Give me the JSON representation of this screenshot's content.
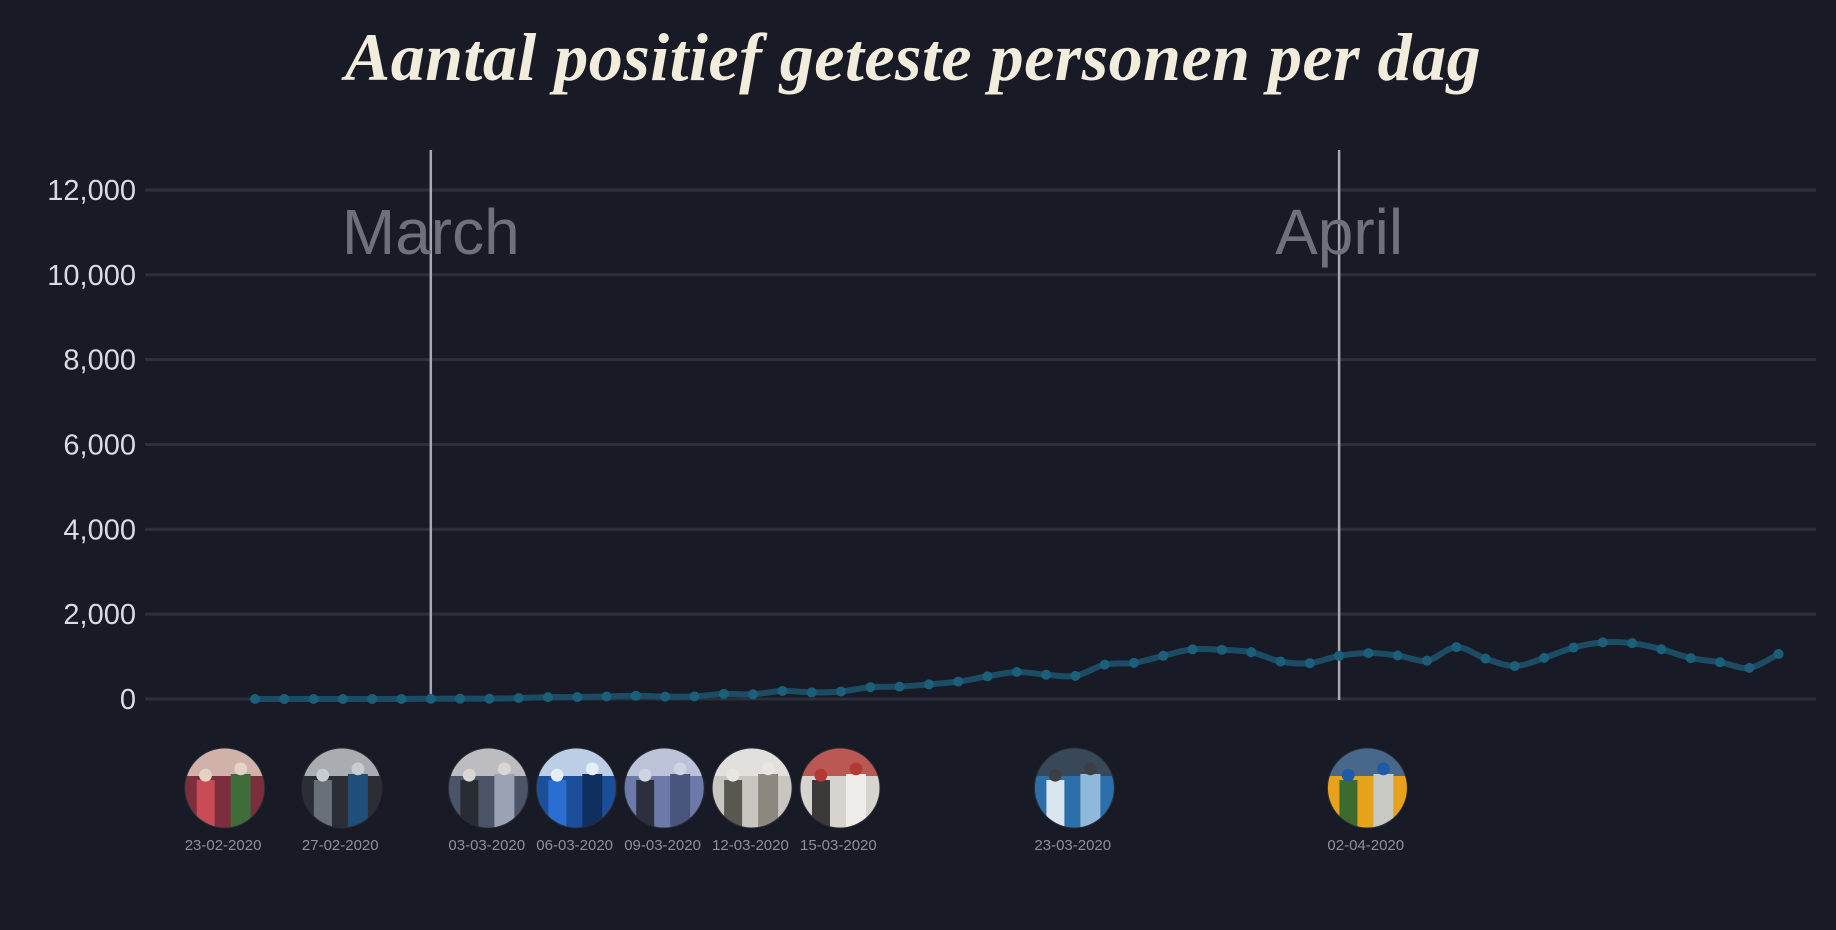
{
  "title": "Aantal positief geteste personen per dag",
  "chart_data": {
    "type": "line",
    "title": "Aantal positief geteste personen per dag",
    "xlabel": "",
    "ylabel": "",
    "y_ticks": [
      "0",
      "2,000",
      "4,000",
      "6,000",
      "8,000",
      "10,000",
      "12,000"
    ],
    "ylim": [
      0,
      12000
    ],
    "xlim": [
      "2020-02-20",
      "2020-04-16"
    ],
    "grid": true,
    "months": [
      {
        "label": "March",
        "date": "2020-03-01"
      },
      {
        "label": "April",
        "date": "2020-04-01"
      }
    ],
    "series": [
      {
        "color": "#1c5f7a",
        "points": [
          [
            "2020-02-24",
            0
          ],
          [
            "2020-02-25",
            0
          ],
          [
            "2020-02-26",
            0
          ],
          [
            "2020-02-27",
            0
          ],
          [
            "2020-02-28",
            1
          ],
          [
            "2020-02-29",
            1
          ],
          [
            "2020-03-01",
            5
          ],
          [
            "2020-03-02",
            8
          ],
          [
            "2020-03-03",
            8
          ],
          [
            "2020-03-04",
            20
          ],
          [
            "2020-03-05",
            44
          ],
          [
            "2020-03-06",
            46
          ],
          [
            "2020-03-07",
            60
          ],
          [
            "2020-03-08",
            77
          ],
          [
            "2020-03-09",
            56
          ],
          [
            "2020-03-10",
            61
          ],
          [
            "2020-03-11",
            121
          ],
          [
            "2020-03-12",
            111
          ],
          [
            "2020-03-13",
            190
          ],
          [
            "2020-03-14",
            155
          ],
          [
            "2020-03-15",
            176
          ],
          [
            "2020-03-16",
            278
          ],
          [
            "2020-03-17",
            292
          ],
          [
            "2020-03-18",
            346
          ],
          [
            "2020-03-19",
            409
          ],
          [
            "2020-03-20",
            534
          ],
          [
            "2020-03-21",
            637
          ],
          [
            "2020-03-22",
            573
          ],
          [
            "2020-03-23",
            545
          ],
          [
            "2020-03-24",
            811
          ],
          [
            "2020-03-25",
            852
          ],
          [
            "2020-03-26",
            1019
          ],
          [
            "2020-03-27",
            1172
          ],
          [
            "2020-03-28",
            1159
          ],
          [
            "2020-03-29",
            1104
          ],
          [
            "2020-03-30",
            884
          ],
          [
            "2020-03-31",
            845
          ],
          [
            "2020-04-01",
            1019
          ],
          [
            "2020-04-02",
            1083
          ],
          [
            "2020-04-03",
            1026
          ],
          [
            "2020-04-04",
            904
          ],
          [
            "2020-04-05",
            1224
          ],
          [
            "2020-04-06",
            952
          ],
          [
            "2020-04-07",
            777
          ],
          [
            "2020-04-08",
            969
          ],
          [
            "2020-04-09",
            1213
          ],
          [
            "2020-04-10",
            1335
          ],
          [
            "2020-04-11",
            1316
          ],
          [
            "2020-04-12",
            1174
          ],
          [
            "2020-04-13",
            964
          ],
          [
            "2020-04-14",
            868
          ],
          [
            "2020-04-15",
            734
          ],
          [
            "2020-04-16",
            1061
          ]
        ]
      }
    ]
  },
  "events": [
    {
      "date": "23-02-2020",
      "image": "carnival-crowd",
      "colors": [
        "#7b2f3c",
        "#c94b55",
        "#e6d3c7",
        "#3f6d3a"
      ]
    },
    {
      "date": "27-02-2020",
      "image": "people-walking-masks",
      "colors": [
        "#2b2e34",
        "#6a7079",
        "#c9ccd1",
        "#1f4e7a"
      ]
    },
    {
      "date": "03-03-2020",
      "image": "press-conference-two-men",
      "colors": [
        "#4c5468",
        "#2a2c33",
        "#d9d6d6",
        "#9aa3b3"
      ]
    },
    {
      "date": "06-03-2020",
      "image": "kruidvat-storefront",
      "colors": [
        "#1b4f9a",
        "#2a6ed1",
        "#e5eef7",
        "#0f2f5e"
      ]
    },
    {
      "date": "09-03-2020",
      "image": "press-conference-podium",
      "colors": [
        "#6d79a8",
        "#2c2f3d",
        "#cfd4e3",
        "#4a557e"
      ]
    },
    {
      "date": "12-03-2020",
      "image": "empty-shelves",
      "colors": [
        "#c9c5c0",
        "#5a5650",
        "#e9e6e2",
        "#8c8880"
      ]
    },
    {
      "date": "15-03-2020",
      "image": "store-interior",
      "colors": [
        "#d7d4cf",
        "#3c3a38",
        "#b33a33",
        "#efede9"
      ]
    },
    {
      "date": "23-03-2020",
      "image": "press-conference-screens",
      "colors": [
        "#2d6fa8",
        "#d9e5ef",
        "#3c3e44",
        "#8fb8da"
      ]
    },
    {
      "date": "02-04-2020",
      "image": "yellow-cart-park",
      "colors": [
        "#e6a21b",
        "#3c6b2e",
        "#1f5aa8",
        "#c9c9c3"
      ]
    }
  ]
}
